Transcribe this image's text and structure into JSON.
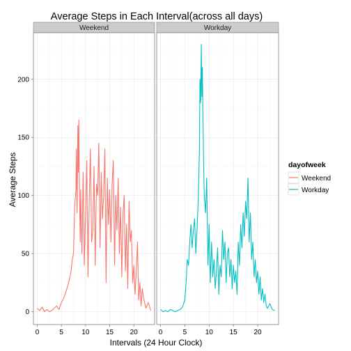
{
  "chart_data": {
    "type": "line",
    "title": "Average Steps in Each Interval(across all days)",
    "xlabel": "Intervals (24 Hour Clock)",
    "ylabel": "Average Steps",
    "xlim": [
      -0.8,
      24.3
    ],
    "ylim": [
      -11,
      240
    ],
    "xticks": [
      0,
      5,
      10,
      15,
      20
    ],
    "yticks": [
      0,
      50,
      100,
      150,
      200
    ],
    "grid": true,
    "legend": {
      "title": "dayofweek",
      "position": "right"
    },
    "panels": [
      {
        "strip": "Weekend",
        "series": "Weekend",
        "color": "#F8766D",
        "x": [
          0.0,
          0.5,
          1.0,
          1.5,
          2.0,
          2.5,
          3.0,
          3.5,
          4.0,
          4.5,
          5.0,
          5.5,
          6.0,
          6.5,
          7.0,
          7.25,
          7.5,
          7.75,
          8.0,
          8.1,
          8.25,
          8.4,
          8.5,
          8.6,
          8.75,
          8.9,
          9.0,
          9.25,
          9.5,
          9.75,
          10.0,
          10.25,
          10.5,
          10.75,
          11.0,
          11.25,
          11.5,
          11.75,
          12.0,
          12.25,
          12.5,
          12.75,
          13.0,
          13.25,
          13.5,
          13.75,
          14.0,
          14.25,
          14.5,
          14.75,
          15.0,
          15.25,
          15.5,
          15.75,
          16.0,
          16.25,
          16.5,
          16.75,
          17.0,
          17.25,
          17.5,
          17.75,
          18.0,
          18.25,
          18.5,
          18.75,
          19.0,
          19.25,
          19.5,
          19.75,
          20.0,
          20.25,
          20.5,
          20.75,
          21.0,
          21.25,
          21.5,
          21.75,
          22.0,
          22.5,
          23.0,
          23.5
        ],
        "y": [
          3,
          1,
          4,
          0,
          2,
          0,
          1,
          3,
          5,
          2,
          8,
          12,
          18,
          25,
          35,
          45,
          50,
          90,
          105,
          140,
          85,
          160,
          120,
          165,
          100,
          60,
          105,
          50,
          120,
          40,
          85,
          130,
          30,
          95,
          140,
          60,
          70,
          125,
          40,
          110,
          100,
          145,
          55,
          120,
          80,
          100,
          140,
          25,
          115,
          75,
          105,
          60,
          110,
          130,
          40,
          100,
          70,
          115,
          50,
          90,
          30,
          85,
          100,
          35,
          75,
          20,
          95,
          60,
          70,
          25,
          40,
          15,
          35,
          60,
          10,
          25,
          5,
          20,
          12,
          3,
          8,
          1
        ]
      },
      {
        "strip": "Workday",
        "series": "Workday",
        "color": "#00BFC4",
        "x": [
          0.0,
          0.5,
          1.0,
          1.5,
          2.0,
          2.5,
          3.0,
          3.5,
          4.0,
          4.5,
          5.0,
          5.25,
          5.5,
          5.75,
          6.0,
          6.25,
          6.5,
          6.75,
          7.0,
          7.25,
          7.5,
          7.75,
          8.0,
          8.1,
          8.25,
          8.4,
          8.5,
          8.6,
          8.75,
          8.9,
          9.0,
          9.25,
          9.5,
          9.75,
          10.0,
          10.25,
          10.5,
          10.75,
          11.0,
          11.25,
          11.5,
          11.75,
          12.0,
          12.25,
          12.5,
          12.75,
          13.0,
          13.25,
          13.5,
          13.75,
          14.0,
          14.25,
          14.5,
          14.75,
          15.0,
          15.25,
          15.5,
          15.75,
          16.0,
          16.25,
          16.5,
          16.75,
          17.0,
          17.25,
          17.5,
          17.75,
          18.0,
          18.25,
          18.5,
          18.75,
          19.0,
          19.25,
          19.5,
          19.75,
          20.0,
          20.25,
          20.5,
          20.75,
          21.0,
          21.25,
          21.5,
          21.75,
          22.0,
          22.5,
          23.0,
          23.5
        ],
        "y": [
          2,
          0,
          1,
          0,
          2,
          1,
          0,
          1,
          2,
          4,
          10,
          25,
          45,
          40,
          60,
          75,
          55,
          70,
          80,
          50,
          70,
          95,
          140,
          200,
          180,
          230,
          185,
          210,
          160,
          120,
          100,
          85,
          115,
          40,
          75,
          25,
          60,
          30,
          45,
          20,
          35,
          55,
          15,
          40,
          30,
          70,
          45,
          60,
          25,
          50,
          55,
          30,
          45,
          20,
          40,
          25,
          35,
          15,
          60,
          40,
          75,
          55,
          85,
          65,
          95,
          80,
          115,
          60,
          85,
          45,
          60,
          30,
          45,
          25,
          35,
          15,
          30,
          10,
          20,
          8,
          15,
          5,
          3,
          7,
          2,
          1
        ]
      }
    ]
  }
}
